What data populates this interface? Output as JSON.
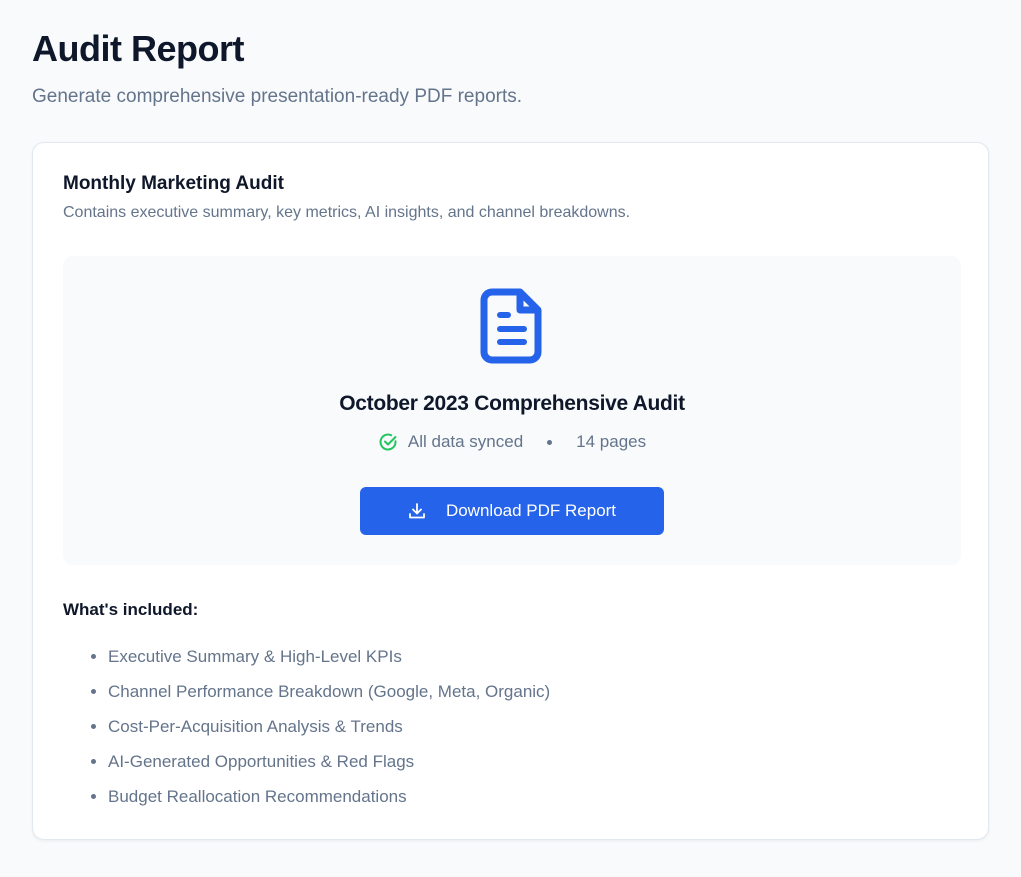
{
  "header": {
    "title": "Audit Report",
    "subtitle": "Generate comprehensive presentation-ready PDF reports."
  },
  "card": {
    "title": "Monthly Marketing Audit",
    "description": "Contains executive summary, key metrics, AI insights, and channel breakdowns.",
    "report": {
      "icon": "file-text-icon",
      "name": "October 2023 Comprehensive Audit",
      "status_icon": "check-circle-icon",
      "status": "All data synced",
      "pages": "14 pages",
      "download_label": "Download PDF Report",
      "download_icon": "download-icon"
    },
    "included_title": "What's included:",
    "included": [
      "Executive Summary & High-Level KPIs",
      "Channel Performance Breakdown (Google, Meta, Organic)",
      "Cost-Per-Acquisition Analysis & Trends",
      "AI-Generated Opportunities & Red Flags",
      "Budget Reallocation Recommendations"
    ]
  },
  "colors": {
    "accent": "#2563eb",
    "success": "#22c55e",
    "muted": "#64748b"
  }
}
